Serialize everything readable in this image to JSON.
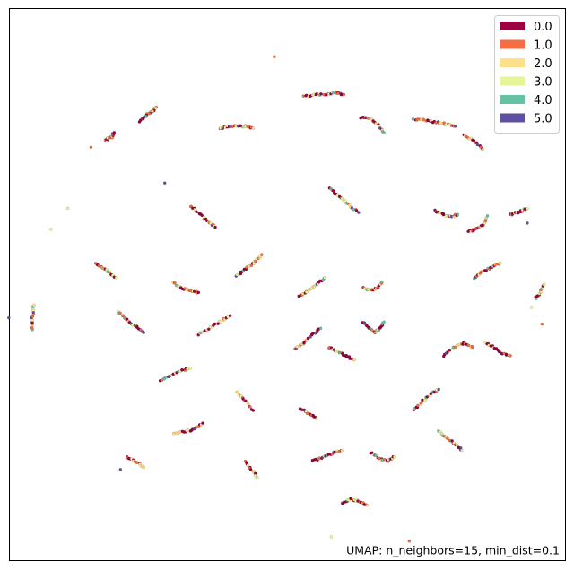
{
  "chart_data": {
    "type": "scatter",
    "title": "",
    "xlabel": "",
    "ylabel": "",
    "axes_ticks": "none",
    "grid": false,
    "legend_placement": "top-right",
    "legend": [
      {
        "label": "0.0",
        "color": "#9e0142"
      },
      {
        "label": "1.0",
        "color": "#f46d43"
      },
      {
        "label": "2.0",
        "color": "#fee08b"
      },
      {
        "label": "3.0",
        "color": "#e6f598"
      },
      {
        "label": "4.0",
        "color": "#66c2a5"
      },
      {
        "label": "5.0",
        "color": "#5e4fa2"
      }
    ],
    "annotation": "UMAP: n_neighbors=15, min_dist=0.1",
    "embedding_extent": {
      "x": [
        -10,
        10
      ],
      "y": [
        -10,
        10
      ]
    },
    "point_clusters": [
      {
        "x": [
          -8.6,
          -8.5,
          -8.3,
          -8.2
        ],
        "y": [
          6.8,
          6.9,
          7.0,
          7.2
        ]
      },
      {
        "x": [
          -6.2,
          -6.4,
          -6.7,
          -7.0
        ],
        "y": [
          8.4,
          8.2,
          8.0,
          7.7
        ]
      },
      {
        "x": [
          -3.2,
          -2.8,
          -2.4,
          -2.0,
          -1.6
        ],
        "y": [
          7.4,
          7.5,
          7.5,
          7.5,
          7.4
        ]
      },
      {
        "x": [
          0.8,
          1.3,
          1.8,
          2.3,
          2.7
        ],
        "y": [
          8.9,
          9.0,
          9.0,
          9.1,
          9.0
        ]
      },
      {
        "x": [
          3.5,
          3.9,
          4.3,
          4.6
        ],
        "y": [
          7.9,
          7.9,
          7.6,
          7.2
        ]
      },
      {
        "x": [
          6.0,
          6.5,
          7.0,
          7.5,
          8.0
        ],
        "y": [
          7.8,
          7.8,
          7.7,
          7.6,
          7.5
        ]
      },
      {
        "x": [
          8.4,
          8.9,
          9.3
        ],
        "y": [
          7.1,
          6.8,
          6.4
        ]
      },
      {
        "x": [
          -4.6,
          -4.2,
          -3.8,
          -3.4
        ],
        "y": [
          3.7,
          3.4,
          3.0,
          2.7
        ]
      },
      {
        "x": [
          2.0,
          2.4,
          2.9,
          3.4
        ],
        "y": [
          4.6,
          4.2,
          3.8,
          3.4
        ]
      },
      {
        "x": [
          7.0,
          7.4,
          7.8,
          8.1
        ],
        "y": [
          3.5,
          3.3,
          3.2,
          3.3
        ]
      },
      {
        "x": [
          9.5,
          9.3,
          8.9,
          8.6
        ],
        "y": [
          3.2,
          2.8,
          2.6,
          2.5
        ]
      },
      {
        "x": [
          10.6,
          10.9,
          11.2,
          11.4
        ],
        "y": [
          3.3,
          3.4,
          3.5,
          3.6
        ]
      },
      {
        "x": [
          -9.1,
          -8.8,
          -8.5,
          -8.1
        ],
        "y": [
          1.0,
          0.8,
          0.6,
          0.3
        ]
      },
      {
        "x": [
          -5.4,
          -5.0,
          -4.6,
          -4.2
        ],
        "y": [
          0.1,
          -0.2,
          -0.3,
          -0.4
        ]
      },
      {
        "x": [
          -2.4,
          -2.0,
          -1.6,
          -1.2
        ],
        "y": [
          0.4,
          0.7,
          1.0,
          1.4
        ]
      },
      {
        "x": [
          0.6,
          1.0,
          1.4,
          1.8
        ],
        "y": [
          -0.6,
          -0.3,
          0.0,
          0.3
        ]
      },
      {
        "x": [
          3.6,
          4.0,
          4.3,
          4.5
        ],
        "y": [
          -0.2,
          -0.3,
          -0.2,
          0.1
        ]
      },
      {
        "x": [
          8.9,
          9.3,
          9.7,
          10.1
        ],
        "y": [
          0.3,
          0.6,
          0.8,
          1.0
        ]
      },
      {
        "x": [
          11.8,
          12.0,
          12.2
        ],
        "y": [
          -0.7,
          -0.4,
          0.0
        ]
      },
      {
        "x": [
          -12.1,
          -12.1,
          -12.0
        ],
        "y": [
          -2.2,
          -1.6,
          -1.0
        ]
      },
      {
        "x": [
          -8.0,
          -7.6,
          -7.2,
          -6.8
        ],
        "y": [
          -1.3,
          -1.7,
          -2.0,
          -2.3
        ]
      },
      {
        "x": [
          -4.2,
          -3.7,
          -3.2,
          -2.7
        ],
        "y": [
          -2.4,
          -2.1,
          -1.8,
          -1.5
        ]
      },
      {
        "x": [
          0.4,
          0.8,
          1.2,
          1.6
        ],
        "y": [
          -3.1,
          -2.8,
          -2.4,
          -2.1
        ]
      },
      {
        "x": [
          3.6,
          3.9,
          4.2,
          4.4,
          4.6
        ],
        "y": [
          -1.8,
          -2.1,
          -2.3,
          -2.1,
          -1.8
        ]
      },
      {
        "x": [
          7.4,
          7.9,
          8.4,
          8.8
        ],
        "y": [
          -3.4,
          -3.0,
          -2.8,
          -3.0
        ]
      },
      {
        "x": [
          9.4,
          9.8,
          10.2,
          10.6
        ],
        "y": [
          -2.8,
          -3.0,
          -3.3,
          -3.4
        ]
      },
      {
        "x": [
          -6.0,
          -5.5,
          -5.0,
          -4.6
        ],
        "y": [
          -4.6,
          -4.3,
          -4.1,
          -4.0
        ]
      },
      {
        "x": [
          -2.4,
          -2.0,
          -1.6
        ],
        "y": [
          -5.1,
          -5.5,
          -6.0
        ]
      },
      {
        "x": [
          2.0,
          2.4,
          2.8,
          3.2
        ],
        "y": [
          -3.0,
          -3.2,
          -3.4,
          -3.6
        ]
      },
      {
        "x": [
          6.0,
          6.4,
          6.8,
          7.2
        ],
        "y": [
          -6.0,
          -5.6,
          -5.2,
          -5.0
        ]
      },
      {
        "x": [
          -5.4,
          -4.9,
          -4.4,
          -4.0
        ],
        "y": [
          -7.1,
          -7.0,
          -6.9,
          -6.6
        ]
      },
      {
        "x": [
          -2.0,
          -1.7,
          -1.4
        ],
        "y": [
          -8.4,
          -8.8,
          -9.2
        ]
      },
      {
        "x": [
          1.2,
          1.7,
          2.2,
          2.6
        ],
        "y": [
          -8.4,
          -8.2,
          -8.0,
          -7.9
        ]
      },
      {
        "x": [
          4.0,
          4.4,
          4.8,
          5.1
        ],
        "y": [
          -8.0,
          -8.3,
          -8.4,
          -8.2
        ]
      },
      {
        "x": [
          7.2,
          7.6,
          8.0,
          8.3
        ],
        "y": [
          -7.0,
          -7.3,
          -7.6,
          -7.9
        ]
      },
      {
        "x": [
          0.6,
          1.0,
          1.4
        ],
        "y": [
          -5.9,
          -6.1,
          -6.4
        ]
      },
      {
        "x": [
          -7.6,
          -7.2,
          -6.8
        ],
        "y": [
          -8.2,
          -8.4,
          -8.7
        ]
      },
      {
        "x": [
          2.6,
          3.0,
          3.4,
          3.8
        ],
        "y": [
          -10.4,
          -10.2,
          -10.3,
          -10.5
        ]
      }
    ],
    "isolated_points": [
      {
        "x": -0.6,
        "y": 10.8
      },
      {
        "x": -11.2,
        "y": 2.6
      },
      {
        "x": -13.2,
        "y": -1.6
      },
      {
        "x": 12.1,
        "y": -1.9
      },
      {
        "x": 11.6,
        "y": -1.1
      },
      {
        "x": 11.4,
        "y": 2.9
      },
      {
        "x": -9.3,
        "y": 6.5
      },
      {
        "x": -10.4,
        "y": 3.6
      },
      {
        "x": -5.8,
        "y": 4.8
      },
      {
        "x": 5.8,
        "y": -12.2
      },
      {
        "x": 2.1,
        "y": -12.0
      },
      {
        "x": -7.9,
        "y": -8.8
      }
    ]
  }
}
